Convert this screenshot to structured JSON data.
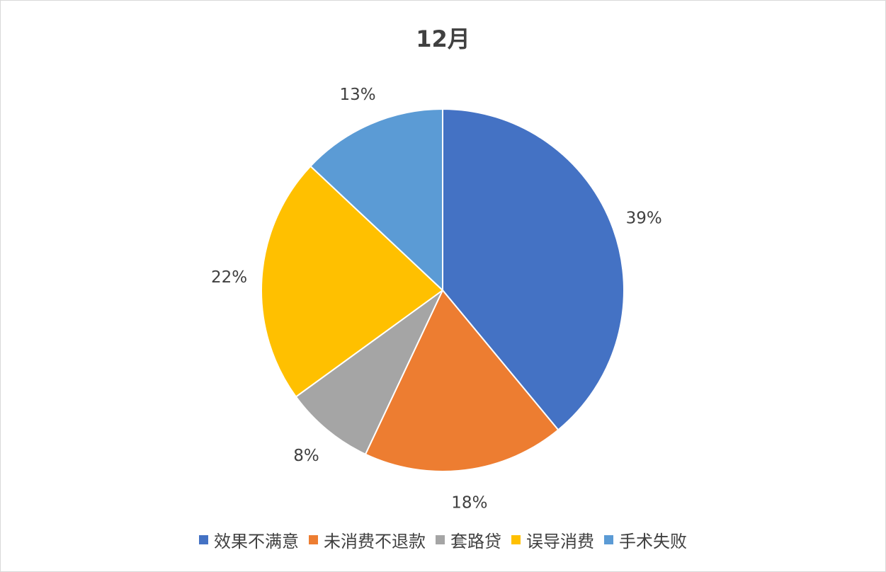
{
  "chart_data": {
    "type": "pie",
    "title": "12月",
    "categories": [
      "效果不满意",
      "未消费不退款",
      "套路贷",
      "误导消费",
      "手术失败"
    ],
    "values": [
      39,
      18,
      8,
      22,
      13
    ],
    "data_labels": [
      "39%",
      "18%",
      "8%",
      "22%",
      "13%"
    ],
    "colors": [
      "#4472C4",
      "#ED7D31",
      "#A5A5A5",
      "#FFC000",
      "#5B9BD5"
    ],
    "legend": "bottom",
    "start_angle": "top, clockwise"
  }
}
